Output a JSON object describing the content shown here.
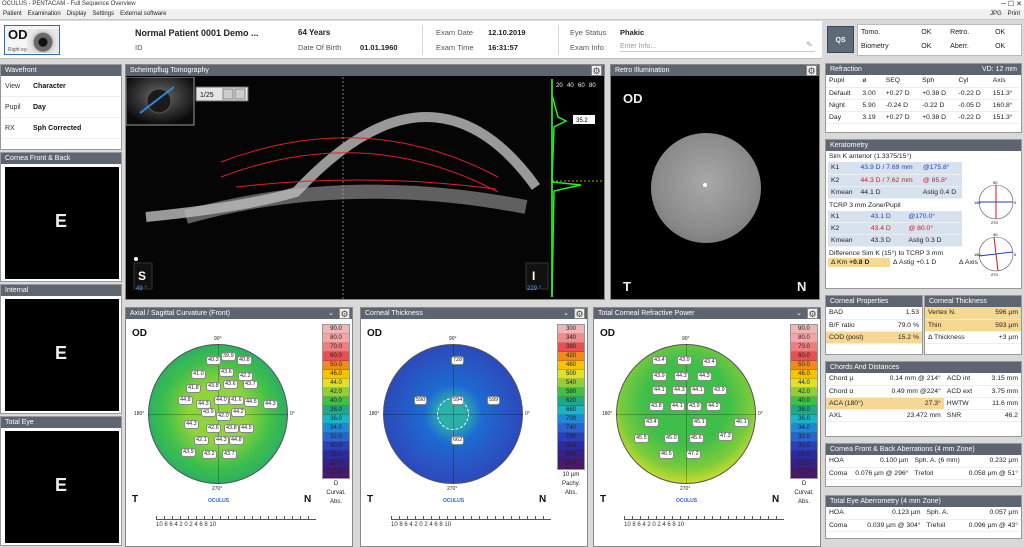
{
  "window": {
    "title": "OCULUS - PENTACAM - Full Sequence Overview"
  },
  "menu": {
    "items": [
      "Patient",
      "Examination",
      "Display",
      "Settings",
      "External software"
    ],
    "right": [
      "JPG",
      "Print"
    ]
  },
  "header": {
    "eye": "OD",
    "eye_sub": "Right eye",
    "patient_name": "Normal Patient 0001 Demo ...",
    "id_label": "ID",
    "age": "64 Years",
    "dob_label": "Date Of Birth",
    "dob": "01.01.1960",
    "exam_date_label": "Exam Date",
    "exam_date": "12.10.2019",
    "exam_time_label": "Exam Time",
    "exam_time": "16:31:57",
    "eye_status_label": "Eye Status",
    "eye_status": "Phakic",
    "exam_info_label": "Exam Info",
    "exam_info_placeholder": "Enter Info..."
  },
  "quality": {
    "qs": "QS",
    "rows": [
      [
        "Tomo.",
        "OK",
        "Retro.",
        "OK"
      ],
      [
        "Biometry",
        "OK",
        "Aberr.",
        "OK"
      ]
    ]
  },
  "left": {
    "wavefront_title": "Wavefront",
    "rows": [
      {
        "label": "View",
        "value": "Character"
      },
      {
        "label": "Pupil",
        "value": "Day"
      },
      {
        "label": "RX",
        "value": "Sph Corrected"
      }
    ],
    "cornea_title": "Cornea Front & Back",
    "internal_title": "Internal",
    "total_title": "Total Eye",
    "letter": "E"
  },
  "scheimpflug": {
    "title": "Scheimpflug Tomography",
    "counter": "1/25",
    "left_letter": "S",
    "left_angle": "49 °",
    "right_letter": "I",
    "right_angle": "229 °",
    "scale": [
      "20",
      "40",
      "60",
      "80"
    ],
    "readout": "35.2"
  },
  "retro": {
    "title": "Retro Illumination",
    "od": "OD",
    "t": "T",
    "n": "N"
  },
  "refraction": {
    "title": "Refraction",
    "vd": "VD: 12 mm",
    "headers": [
      "Pupil",
      "ø",
      "SEQ",
      "Sph",
      "Cyl",
      "Axis"
    ],
    "rows": [
      [
        "Default",
        "3.00",
        "+0.27 D",
        "+0.38 D",
        "-0.22 D",
        "151.3°"
      ],
      [
        "Night",
        "5.90",
        "-0.24 D",
        "-0.22 D",
        "-0.05 D",
        "160.8°"
      ],
      [
        "Day",
        "3.19",
        "+0.27 D",
        "+0.38 D",
        "-0.22 D",
        "151.3°"
      ]
    ]
  },
  "keratometry": {
    "title": "Keratometry",
    "simk_label": "Sim K anterior (1.3375/15°)",
    "k1": "43.9 D / 7.69 mm",
    "k1_axis": "@175.8°",
    "k2": "44.3 D / 7.62 mm",
    "k2_axis": "@ 85.8°",
    "kmean_label": "Kmean",
    "kmean": "44.1 D",
    "astig_label": "Astig",
    "astig": "0.4 D",
    "tcrp_label": "TCRP 3 mm Zone/Pupil",
    "t_k1": "43.1 D",
    "t_k1_axis": "@170.0°",
    "t_k2": "43.4 D",
    "t_k2_axis": "@ 80.0°",
    "t_kmean": "43.3 D",
    "t_astig": "0.3 D",
    "diff_label": "Difference Sim K (15°) to TCRP 3 mm",
    "d_km_label": "Δ Km",
    "d_km": "+0.8 D",
    "d_astig_label": "Δ Astig",
    "d_astig": "+0.1 D",
    "d_axis_label": "Δ Axis",
    "d_axis": "+5.8°",
    "k1_label": "K1",
    "k2_label": "K2",
    "dial_top": "90",
    "dial_bottom": "270",
    "dial_left": "180",
    "dial_right": "0"
  },
  "corneal_props": {
    "title": "Corneal Properties",
    "rows": [
      [
        "BAD",
        "1.53"
      ],
      [
        "B/F ratio",
        "79.0 %"
      ],
      [
        "COD (post)",
        "15.2 %"
      ]
    ]
  },
  "corneal_thick": {
    "title": "Corneal Thickness",
    "rows": [
      [
        "Vertex N.",
        "596 µm"
      ],
      [
        "Thin",
        "593 µm"
      ],
      [
        "Δ Thickness",
        "+3 µm"
      ]
    ]
  },
  "chords": {
    "title": "Chords And Distances",
    "rows": [
      [
        "Chord µ",
        "0.14 mm @ 214°",
        "ACD int",
        "3.15 mm"
      ],
      [
        "Chord α",
        "0.49 mm @224°",
        "ACD ext",
        "3.75 mm"
      ],
      [
        "ACA (180°)",
        "27.3°",
        "HWTW",
        "11.6 mm"
      ],
      [
        "AXL",
        "23.472 mm",
        "SNR",
        "46.2"
      ]
    ]
  },
  "aberr_cornea": {
    "title": "Cornea Front & Back Aberrations (4 mm Zone)",
    "rows": [
      [
        "HOA",
        "0.100 µm",
        "Sph. A. (6 mm)",
        "0.232 µm"
      ],
      [
        "Coma",
        "0.076 µm @ 296°",
        "Trefoil",
        "0.058 µm @ 51°"
      ]
    ]
  },
  "aberr_total": {
    "title": "Total Eye Aberrometry (4 mm Zone)",
    "rows": [
      [
        "HOA",
        "0.123 µm",
        "Sph. A.",
        "0.057 µm"
      ],
      [
        "Coma",
        "0.039 µm @ 304°",
        "Trefoil",
        "0.096 µm @ 43°"
      ]
    ]
  },
  "maps": [
    {
      "title": "Axial / Sagittal Curvature (Front)",
      "od": "OD",
      "t": "T",
      "n": "N",
      "scale": [
        "90.0",
        "80.0",
        "70.0",
        "60.0",
        "50.0",
        "46.0",
        "44.0",
        "42.0",
        "40.0",
        "38.0",
        "36.0",
        "34.0",
        "32.0",
        "30.0",
        "25.0",
        "20.0",
        "10.0"
      ],
      "scale_colors": [
        "#f2b5b5",
        "#f4a6a6",
        "#ee7e7e",
        "#e65050",
        "#f08a1a",
        "#f5c400",
        "#dfe22a",
        "#8cd13b",
        "#3fbf4a",
        "#1fa78a",
        "#1bb3c8",
        "#1d89d8",
        "#2a63cc",
        "#2c3fb8",
        "#2c2a9e",
        "#3a2080",
        "#4a1a6a"
      ],
      "unit": [
        "D",
        "Curvat.",
        "Abs."
      ],
      "values": [
        "40.3",
        "39.9",
        "40.8",
        "41.0",
        "43.6",
        "42.2",
        "41.8",
        "43.8",
        "43.6",
        "43.7",
        "44.8",
        "44.3",
        "44.0",
        "41.6",
        "44.5",
        "44.3",
        "43.9",
        "42.0",
        "44.2",
        "44.3",
        "42.6",
        "43.8",
        "44.5",
        "42.1",
        "44.3",
        "44.8",
        "43.9",
        "43.2",
        "43.7"
      ]
    },
    {
      "title": "Corneal Thickness",
      "od": "OD",
      "t": "T",
      "n": "N",
      "scale": [
        "300",
        "340",
        "380",
        "420",
        "460",
        "500",
        "540",
        "580",
        "620",
        "660",
        "700",
        "740",
        "780",
        "820",
        "860",
        "900"
      ],
      "scale_colors": [
        "#f2b5b5",
        "#ee8c8c",
        "#e65050",
        "#f08a1a",
        "#f5c400",
        "#dfe22a",
        "#8cd13b",
        "#3fbf4a",
        "#1fa78a",
        "#1bb3c8",
        "#1d89d8",
        "#2a63cc",
        "#2c3fb8",
        "#2c2a9e",
        "#3a2080",
        "#4a1a6a"
      ],
      "unit": [
        "10 µm",
        "Pachy.",
        "Abs."
      ],
      "values": [
        "728",
        "590",
        "594",
        "599",
        "662"
      ]
    },
    {
      "title": "Total Corneal Refractive Power",
      "od": "OD",
      "t": "T",
      "n": "N",
      "scale": [
        "90.0",
        "80.0",
        "70.0",
        "60.0",
        "50.0",
        "46.0",
        "44.0",
        "42.0",
        "40.0",
        "38.0",
        "36.0",
        "34.0",
        "32.0",
        "30.0",
        "25.0",
        "20.0",
        "10.0"
      ],
      "scale_colors": [
        "#f2b5b5",
        "#f4a6a6",
        "#ee7e7e",
        "#e65050",
        "#f08a1a",
        "#f5c400",
        "#dfe22a",
        "#8cd13b",
        "#3fbf4a",
        "#1fa78a",
        "#1bb3c8",
        "#1d89d8",
        "#2a63cc",
        "#2c3fb8",
        "#2c2a9e",
        "#3a2080",
        "#4a1a6a"
      ],
      "unit": [
        "D",
        "Curvat.",
        "Abs."
      ],
      "values": [
        "43.4",
        "43.9",
        "43.4",
        "43.9",
        "44.3",
        "44.3",
        "44.1",
        "44.3",
        "44.1",
        "43.9",
        "43.8",
        "44.1",
        "43.9",
        "44.2",
        "43.4",
        "45.1",
        "46.1",
        "45.5",
        "45.0",
        "45.6",
        "47.3",
        "46.5",
        "47.2"
      ]
    }
  ],
  "map_angles": {
    "a90": "90°",
    "a0": "0°",
    "a180": "180°",
    "a270": "270°"
  },
  "logo": "OCULUS",
  "ruler": "10 8 6 4 2 0 2 4 6 8 10",
  "accent": "#5d6570"
}
